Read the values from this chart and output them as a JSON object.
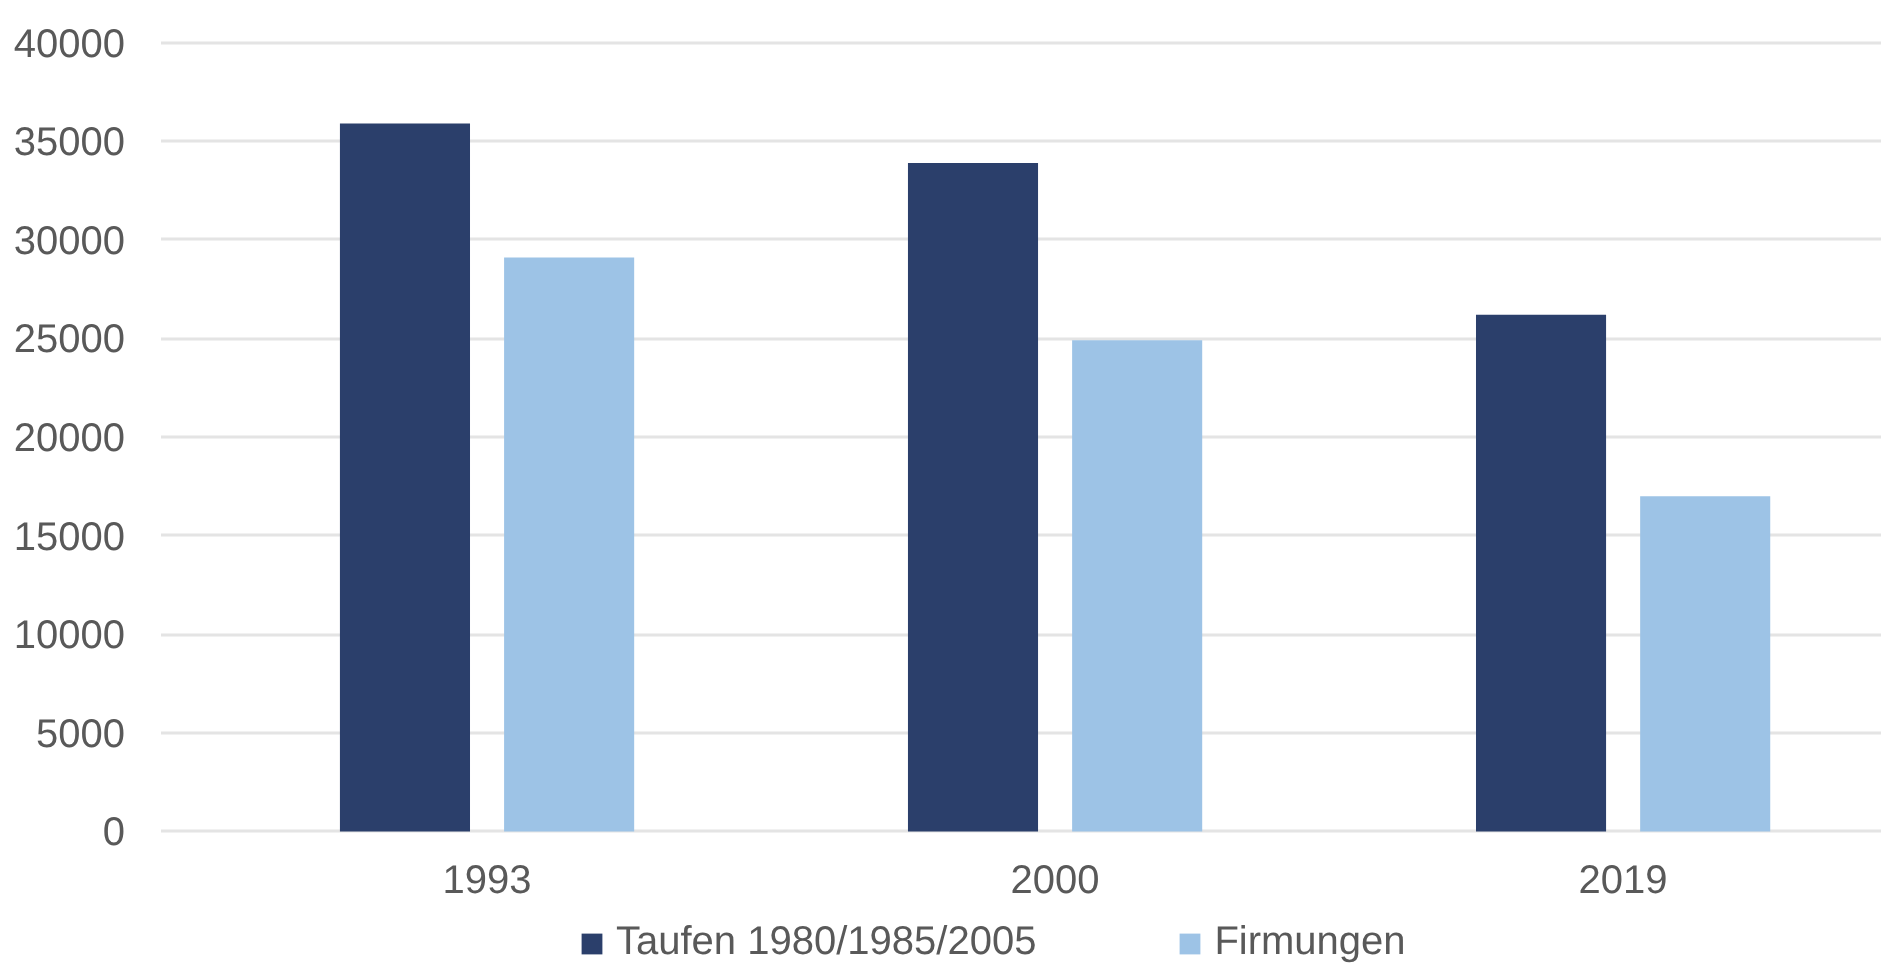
{
  "chart_data": {
    "type": "bar",
    "categories": [
      "1993",
      "2000",
      "2019"
    ],
    "series": [
      {
        "name": "Taufen 1980/1985/2005",
        "color": "#2b3f6b",
        "values": [
          35900,
          33900,
          26200
        ]
      },
      {
        "name": "Firmungen",
        "color": "#9dc3e6",
        "values": [
          29100,
          24900,
          17000
        ]
      }
    ],
    "ylim": [
      0,
      40000
    ],
    "yticks": [
      0,
      5000,
      10000,
      15000,
      20000,
      25000,
      30000,
      35000,
      40000
    ],
    "grid": "y",
    "legend": "bottom"
  }
}
